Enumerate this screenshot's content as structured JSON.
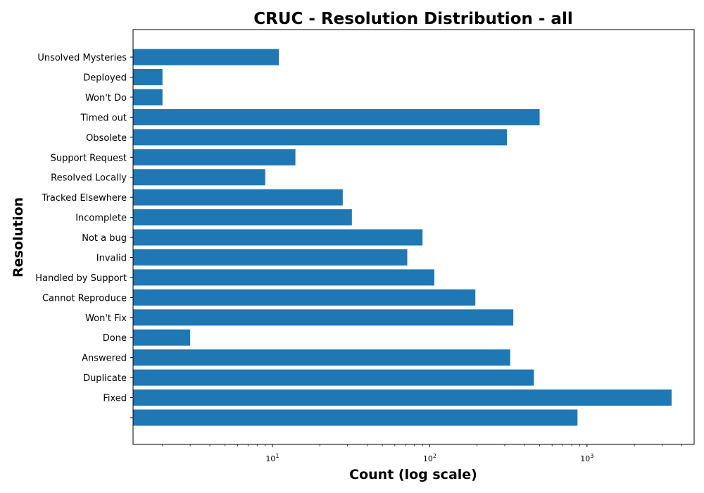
{
  "chart_data": {
    "type": "bar",
    "orientation": "horizontal",
    "title": "CRUC - Resolution Distribution - all",
    "xlabel": "Count (log scale)",
    "ylabel": "Resolution",
    "x_scale": "log",
    "xlim": [
      1.3,
      4800
    ],
    "x_ticks": [
      10,
      100,
      1000
    ],
    "x_tick_labels": [
      {
        "base": "10",
        "exp": "1"
      },
      {
        "base": "10",
        "exp": "2"
      },
      {
        "base": "10",
        "exp": "3"
      }
    ],
    "bar_color": "#1f77b4",
    "grid": false,
    "categories": [
      "",
      "Fixed",
      "Duplicate",
      "Answered",
      "Done",
      "Won't Fix",
      "Cannot Reproduce",
      "Handled by Support",
      "Invalid",
      "Not a bug",
      "Incomplete",
      "Tracked Elsewhere",
      "Resolved Locally",
      "Support Request",
      "Obsolete",
      "Timed out",
      "Won't Do",
      "Deployed",
      "Unsolved Mysteries"
    ],
    "values": [
      870,
      3450,
      460,
      325,
      3,
      340,
      195,
      107,
      72,
      90,
      32,
      28,
      9,
      14,
      310,
      500,
      2,
      2,
      11
    ]
  }
}
